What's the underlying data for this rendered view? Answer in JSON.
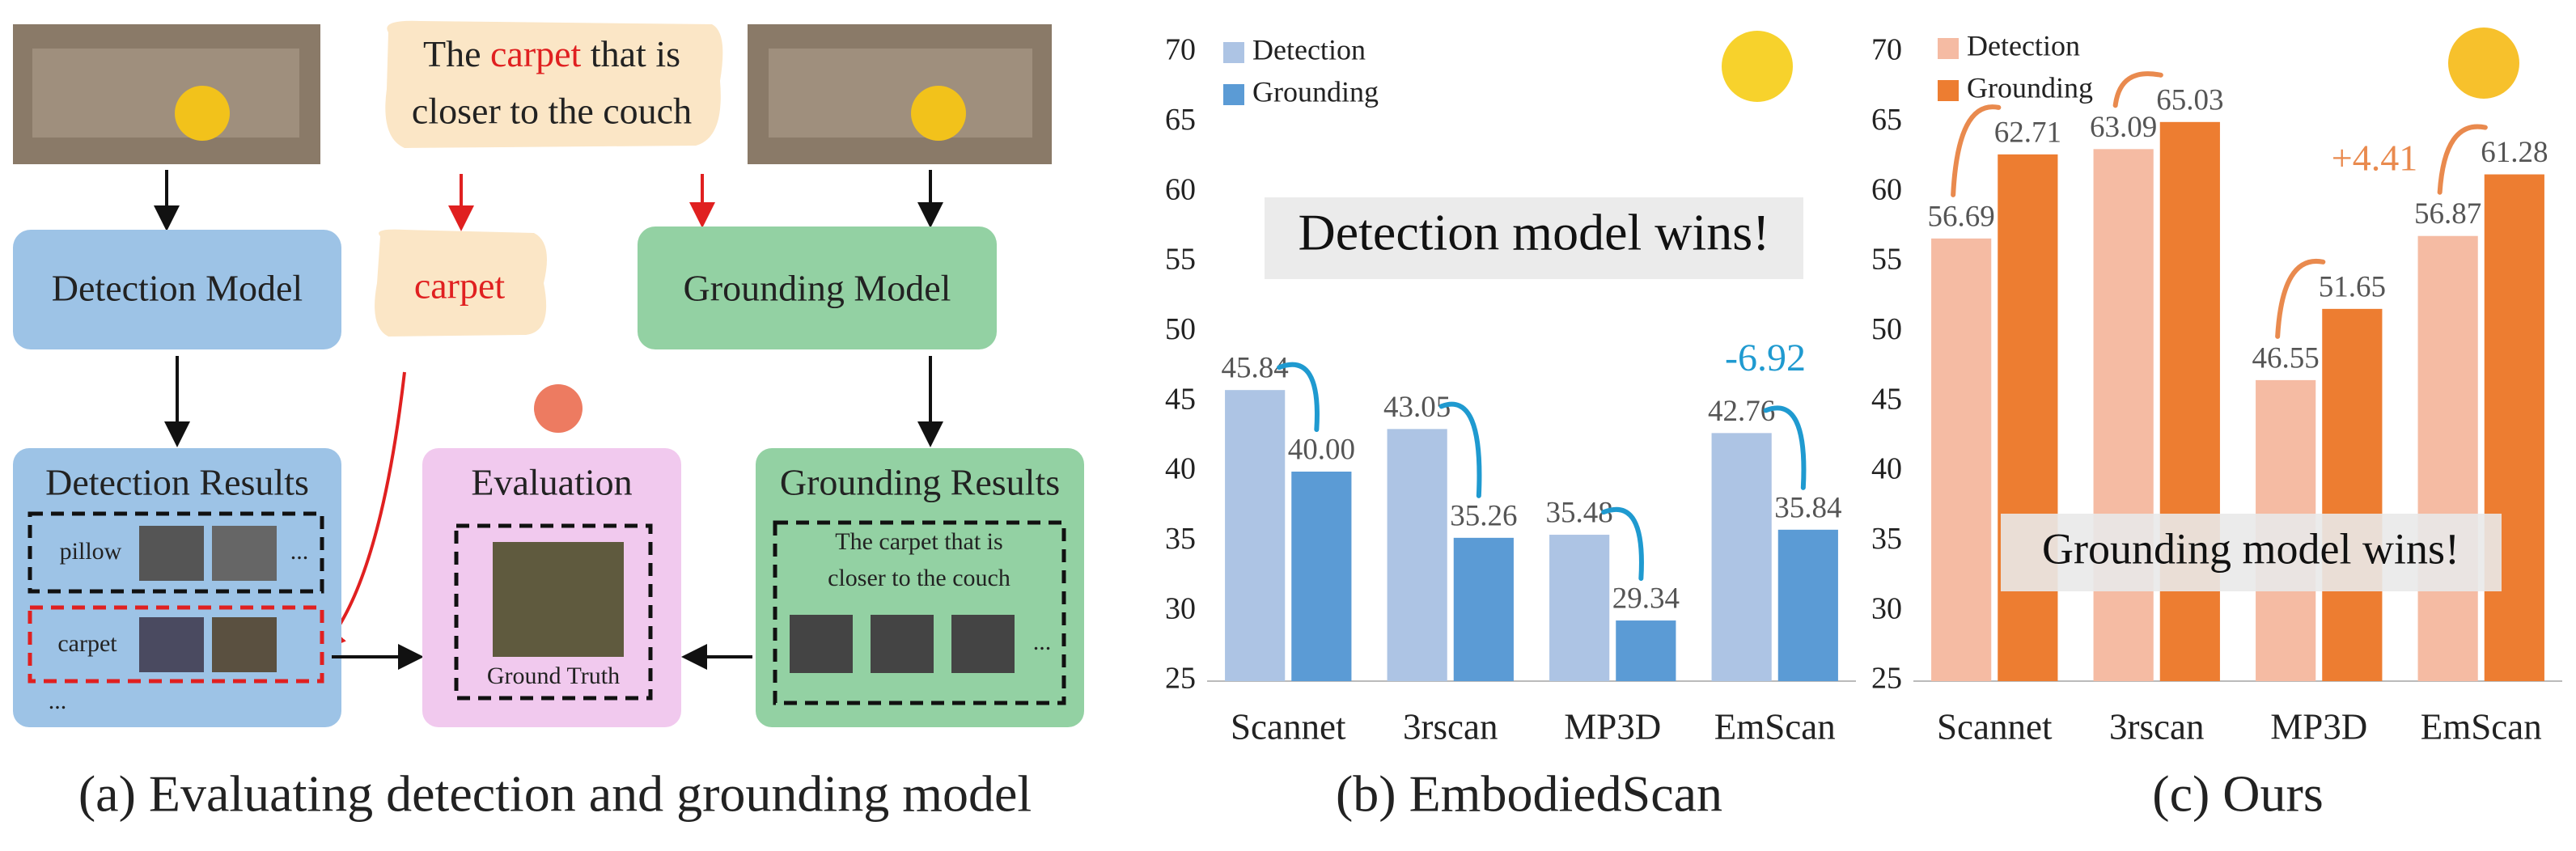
{
  "diagram": {
    "query": {
      "word_before": "The",
      "highlight": "carpet",
      "line1_rest": "that is",
      "line2": "closer to the couch"
    },
    "detection_model": "Detection Model",
    "extracted_word": "carpet",
    "grounding_model": "Grounding  Model",
    "detection_results": {
      "title": "Detection Results",
      "row1_label": "pillow",
      "row1_more": "...",
      "row2_label": "carpet",
      "more": "..."
    },
    "evaluation": {
      "title": "Evaluation",
      "ground_truth": "Ground Truth"
    },
    "grounding_results": {
      "title": "Grounding Results",
      "query_lines": [
        "The carpet that is",
        "closer to the couch"
      ],
      "more": "..."
    },
    "caption": "(a) Evaluating detection and grounding model"
  },
  "chart_data": [
    {
      "type": "bar",
      "caption": "(b) EmbodiedScan",
      "categories": [
        "Scannet",
        "3rscan",
        "MP3D",
        "EmScan"
      ],
      "series": [
        {
          "name": "Detection",
          "color": "#adc4e4",
          "values": [
            45.84,
            43.05,
            35.48,
            42.76
          ],
          "value_labels": [
            "45.84",
            "43.05",
            "35.48",
            "42.76"
          ]
        },
        {
          "name": "Grounding",
          "color": "#5b9bd5",
          "values": [
            40.0,
            35.26,
            29.34,
            35.84
          ],
          "value_labels": [
            "40.00",
            "35.26",
            "29.34",
            "35.84"
          ]
        }
      ],
      "ylim": [
        25,
        70
      ],
      "yticks": [
        25,
        30,
        35,
        40,
        45,
        50,
        55,
        60,
        65,
        70
      ],
      "grid": false,
      "legend": "top-left",
      "annotations": [
        "Detection model wins!",
        "-6.92"
      ],
      "arrow_color": "#1f9ad0"
    },
    {
      "type": "bar",
      "caption": "(c) Ours",
      "categories": [
        "Scannet",
        "3rscan",
        "MP3D",
        "EmScan"
      ],
      "series": [
        {
          "name": "Detection",
          "color": "#f5bba3",
          "values": [
            56.69,
            63.09,
            46.55,
            56.87
          ],
          "value_labels": [
            "56.69",
            "63.09",
            "46.55",
            "56.87"
          ]
        },
        {
          "name": "Grounding",
          "color": "#ed7d31",
          "values": [
            62.71,
            65.03,
            51.65,
            61.28
          ],
          "value_labels": [
            "62.71",
            "65.03",
            "51.65",
            "61.28"
          ]
        }
      ],
      "ylim": [
        25,
        70
      ],
      "yticks": [
        25,
        30,
        35,
        40,
        45,
        50,
        55,
        60,
        65,
        70
      ],
      "grid": false,
      "legend": "top-left",
      "annotations": [
        "Grounding model wins!",
        "+4.41"
      ],
      "arrow_color": "#e98a4e"
    }
  ]
}
